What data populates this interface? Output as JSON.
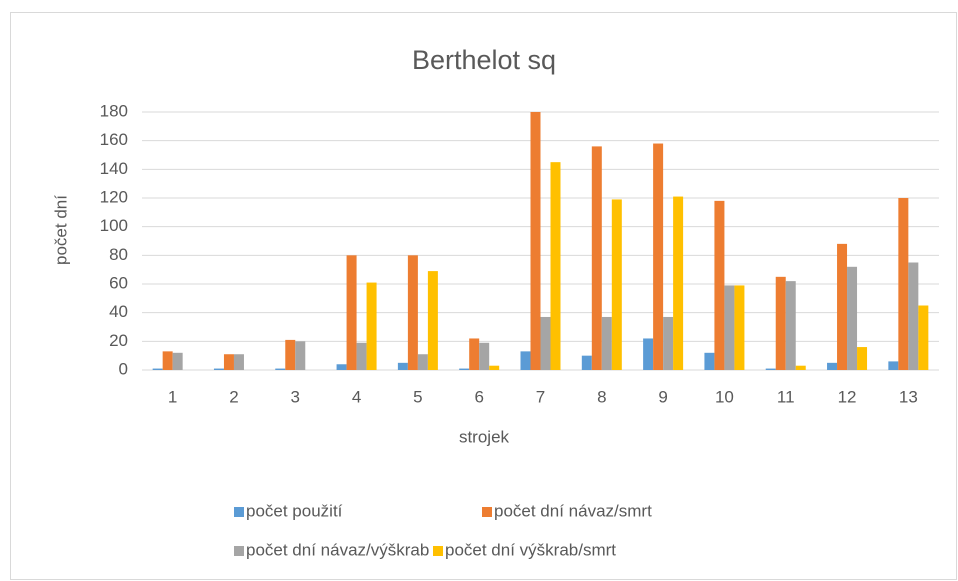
{
  "chart_data": {
    "type": "bar",
    "title": "Berthelot sq",
    "x_label": "strojek",
    "y_label": "počet dní",
    "categories": [
      "1",
      "2",
      "3",
      "4",
      "5",
      "6",
      "7",
      "8",
      "9",
      "10",
      "11",
      "12",
      "13"
    ],
    "series": [
      {
        "name": "počet použití",
        "color": "#5b9bd5",
        "values": [
          1,
          1,
          1,
          4,
          5,
          1,
          13,
          10,
          22,
          12,
          1,
          5,
          6
        ]
      },
      {
        "name": "počet dní návaz/smrt",
        "color": "#ed7d31",
        "values": [
          13,
          11,
          21,
          80,
          80,
          22,
          180,
          156,
          158,
          118,
          65,
          88,
          120
        ]
      },
      {
        "name": "počet dní návaz/výškrab",
        "color": "#a5a5a5",
        "values": [
          12,
          11,
          20,
          19,
          11,
          19,
          37,
          37,
          37,
          59,
          62,
          72,
          75
        ]
      },
      {
        "name": "počet dní výškrab/smrt",
        "color": "#ffc000",
        "values": [
          0,
          0,
          0,
          61,
          69,
          3,
          145,
          119,
          121,
          59,
          3,
          16,
          45
        ]
      }
    ],
    "ylim": [
      0,
      180
    ],
    "yticks": [
      0,
      20,
      40,
      60,
      80,
      100,
      120,
      140,
      160,
      180
    ],
    "grid": true,
    "legend": "bottom"
  }
}
